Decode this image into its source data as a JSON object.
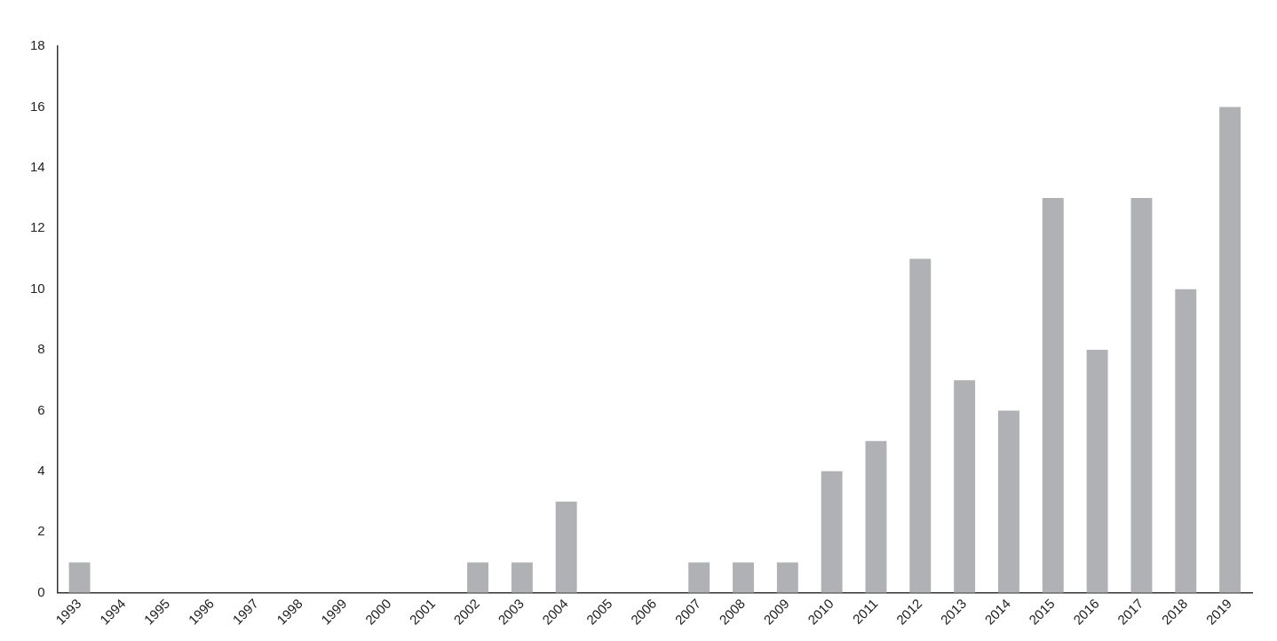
{
  "chart_data": {
    "type": "bar",
    "categories": [
      "1993",
      "1994",
      "1995",
      "1996",
      "1997",
      "1998",
      "1999",
      "2000",
      "2001",
      "2002",
      "2003",
      "2004",
      "2005",
      "2006",
      "2007",
      "2008",
      "2009",
      "2010",
      "2011",
      "2012",
      "2013",
      "2014",
      "2015",
      "2016",
      "2017",
      "2018",
      "2019"
    ],
    "values": [
      1,
      0,
      0,
      0,
      0,
      0,
      0,
      0,
      0,
      1,
      1,
      3,
      0,
      0,
      1,
      1,
      1,
      4,
      5,
      11,
      7,
      6,
      13,
      8,
      13,
      10,
      16
    ],
    "color": "#b0b1b5",
    "ylim": [
      0,
      18
    ],
    "yticks": [
      0,
      2,
      4,
      6,
      8,
      10,
      12,
      14,
      16,
      18
    ],
    "grid": false,
    "legend": false
  }
}
